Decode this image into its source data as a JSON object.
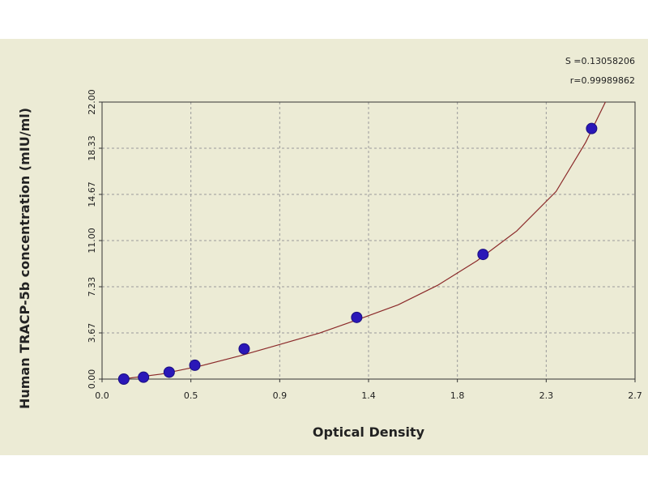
{
  "chart_data": {
    "type": "scatter",
    "title": "",
    "xlabel": "Optical Density",
    "ylabel": "Human TRACP-5b concentration (mIU/ml)",
    "xlim": [
      0.0,
      2.7
    ],
    "ylim": [
      0.0,
      22.0
    ],
    "x_ticks": [
      "0.0",
      "0.5",
      "0.9",
      "1.4",
      "1.8",
      "2.3",
      "2.7"
    ],
    "y_ticks": [
      "0.00",
      "3.67",
      "7.33",
      "11.00",
      "14.67",
      "18.33",
      "22.00"
    ],
    "grid": true,
    "points": [
      {
        "x": 0.11,
        "y": 0.0
      },
      {
        "x": 0.21,
        "y": 0.15
      },
      {
        "x": 0.34,
        "y": 0.55
      },
      {
        "x": 0.47,
        "y": 1.1
      },
      {
        "x": 0.72,
        "y": 2.4
      },
      {
        "x": 1.29,
        "y": 4.9
      },
      {
        "x": 1.93,
        "y": 9.9
      },
      {
        "x": 2.48,
        "y": 19.9
      }
    ],
    "fit_curve": [
      {
        "x": 0.1,
        "y": 0.0
      },
      {
        "x": 0.3,
        "y": 0.4
      },
      {
        "x": 0.5,
        "y": 1.05
      },
      {
        "x": 0.7,
        "y": 1.85
      },
      {
        "x": 0.9,
        "y": 2.75
      },
      {
        "x": 1.1,
        "y": 3.65
      },
      {
        "x": 1.3,
        "y": 4.75
      },
      {
        "x": 1.5,
        "y": 5.9
      },
      {
        "x": 1.7,
        "y": 7.45
      },
      {
        "x": 1.9,
        "y": 9.4
      },
      {
        "x": 2.1,
        "y": 11.75
      },
      {
        "x": 2.3,
        "y": 14.9
      },
      {
        "x": 2.45,
        "y": 18.8
      },
      {
        "x": 2.55,
        "y": 22.0
      }
    ],
    "stats": {
      "s": "S =0.13058206",
      "r": "r=0.99989862"
    },
    "colors": {
      "points": "#2a17b8",
      "curve": "#8b2a2a",
      "background": "#ecebd5",
      "grid": "#9a9a9a"
    }
  }
}
